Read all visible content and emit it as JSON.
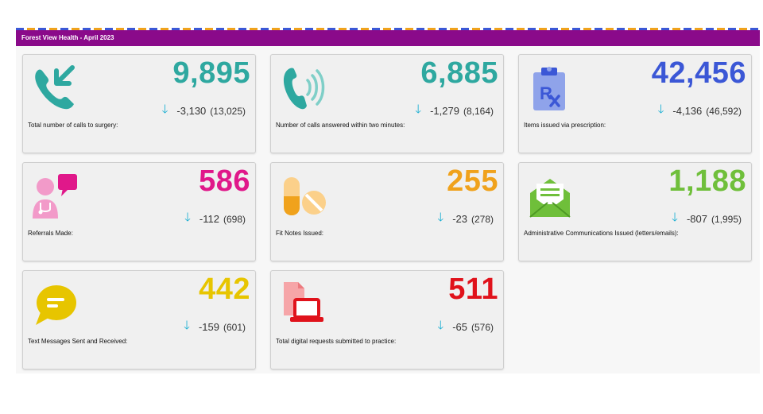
{
  "header": {
    "title": "Forest View Health - April 2023"
  },
  "colors": {
    "header_bg": "#8a0a8a",
    "teal": "#2ea8a0",
    "blue": "#3b57d6",
    "pink": "#e0188a",
    "orange": "#f0a21c",
    "green": "#6fbf3a",
    "yellow": "#e7c500",
    "red": "#e0121b",
    "arrow": "#1fb0d3"
  },
  "cards": [
    {
      "icon": "phone-incoming-icon",
      "value": "9,895",
      "delta": "-3,130",
      "previous": "(13,025)",
      "label": "Total number of calls to surgery:",
      "color": "#2ea8a0"
    },
    {
      "icon": "phone-ringing-icon",
      "value": "6,885",
      "delta": "-1,279",
      "previous": "(8,164)",
      "label": "Number of calls answered within two minutes:",
      "color": "#2ea8a0"
    },
    {
      "icon": "prescription-clipboard-icon",
      "value": "42,456",
      "delta": "-4,136",
      "previous": "(46,592)",
      "label": "Items issued via prescription:",
      "color": "#3b57d6"
    },
    {
      "icon": "doctor-referral-icon",
      "value": "586",
      "delta": "-112",
      "previous": "(698)",
      "label": "Referrals Made:",
      "color": "#e0188a"
    },
    {
      "icon": "pills-icon",
      "value": "255",
      "delta": "-23",
      "previous": "(278)",
      "label": "Fit Notes Issued:",
      "color": "#f0a21c"
    },
    {
      "icon": "envelope-letter-icon",
      "value": "1,188",
      "delta": "-807",
      "previous": "(1,995)",
      "label": "Administrative Communications Issued (letters/emails):",
      "color": "#6fbf3a"
    },
    {
      "icon": "chat-bubble-icon",
      "value": "442",
      "delta": "-159",
      "previous": "(601)",
      "label": "Text Messages Sent and Received:",
      "color": "#e7c500"
    },
    {
      "icon": "laptop-document-icon",
      "value": "511",
      "delta": "-65",
      "previous": "(576)",
      "label": "Total digital requests submitted to practice:",
      "color": "#e0121b"
    }
  ]
}
